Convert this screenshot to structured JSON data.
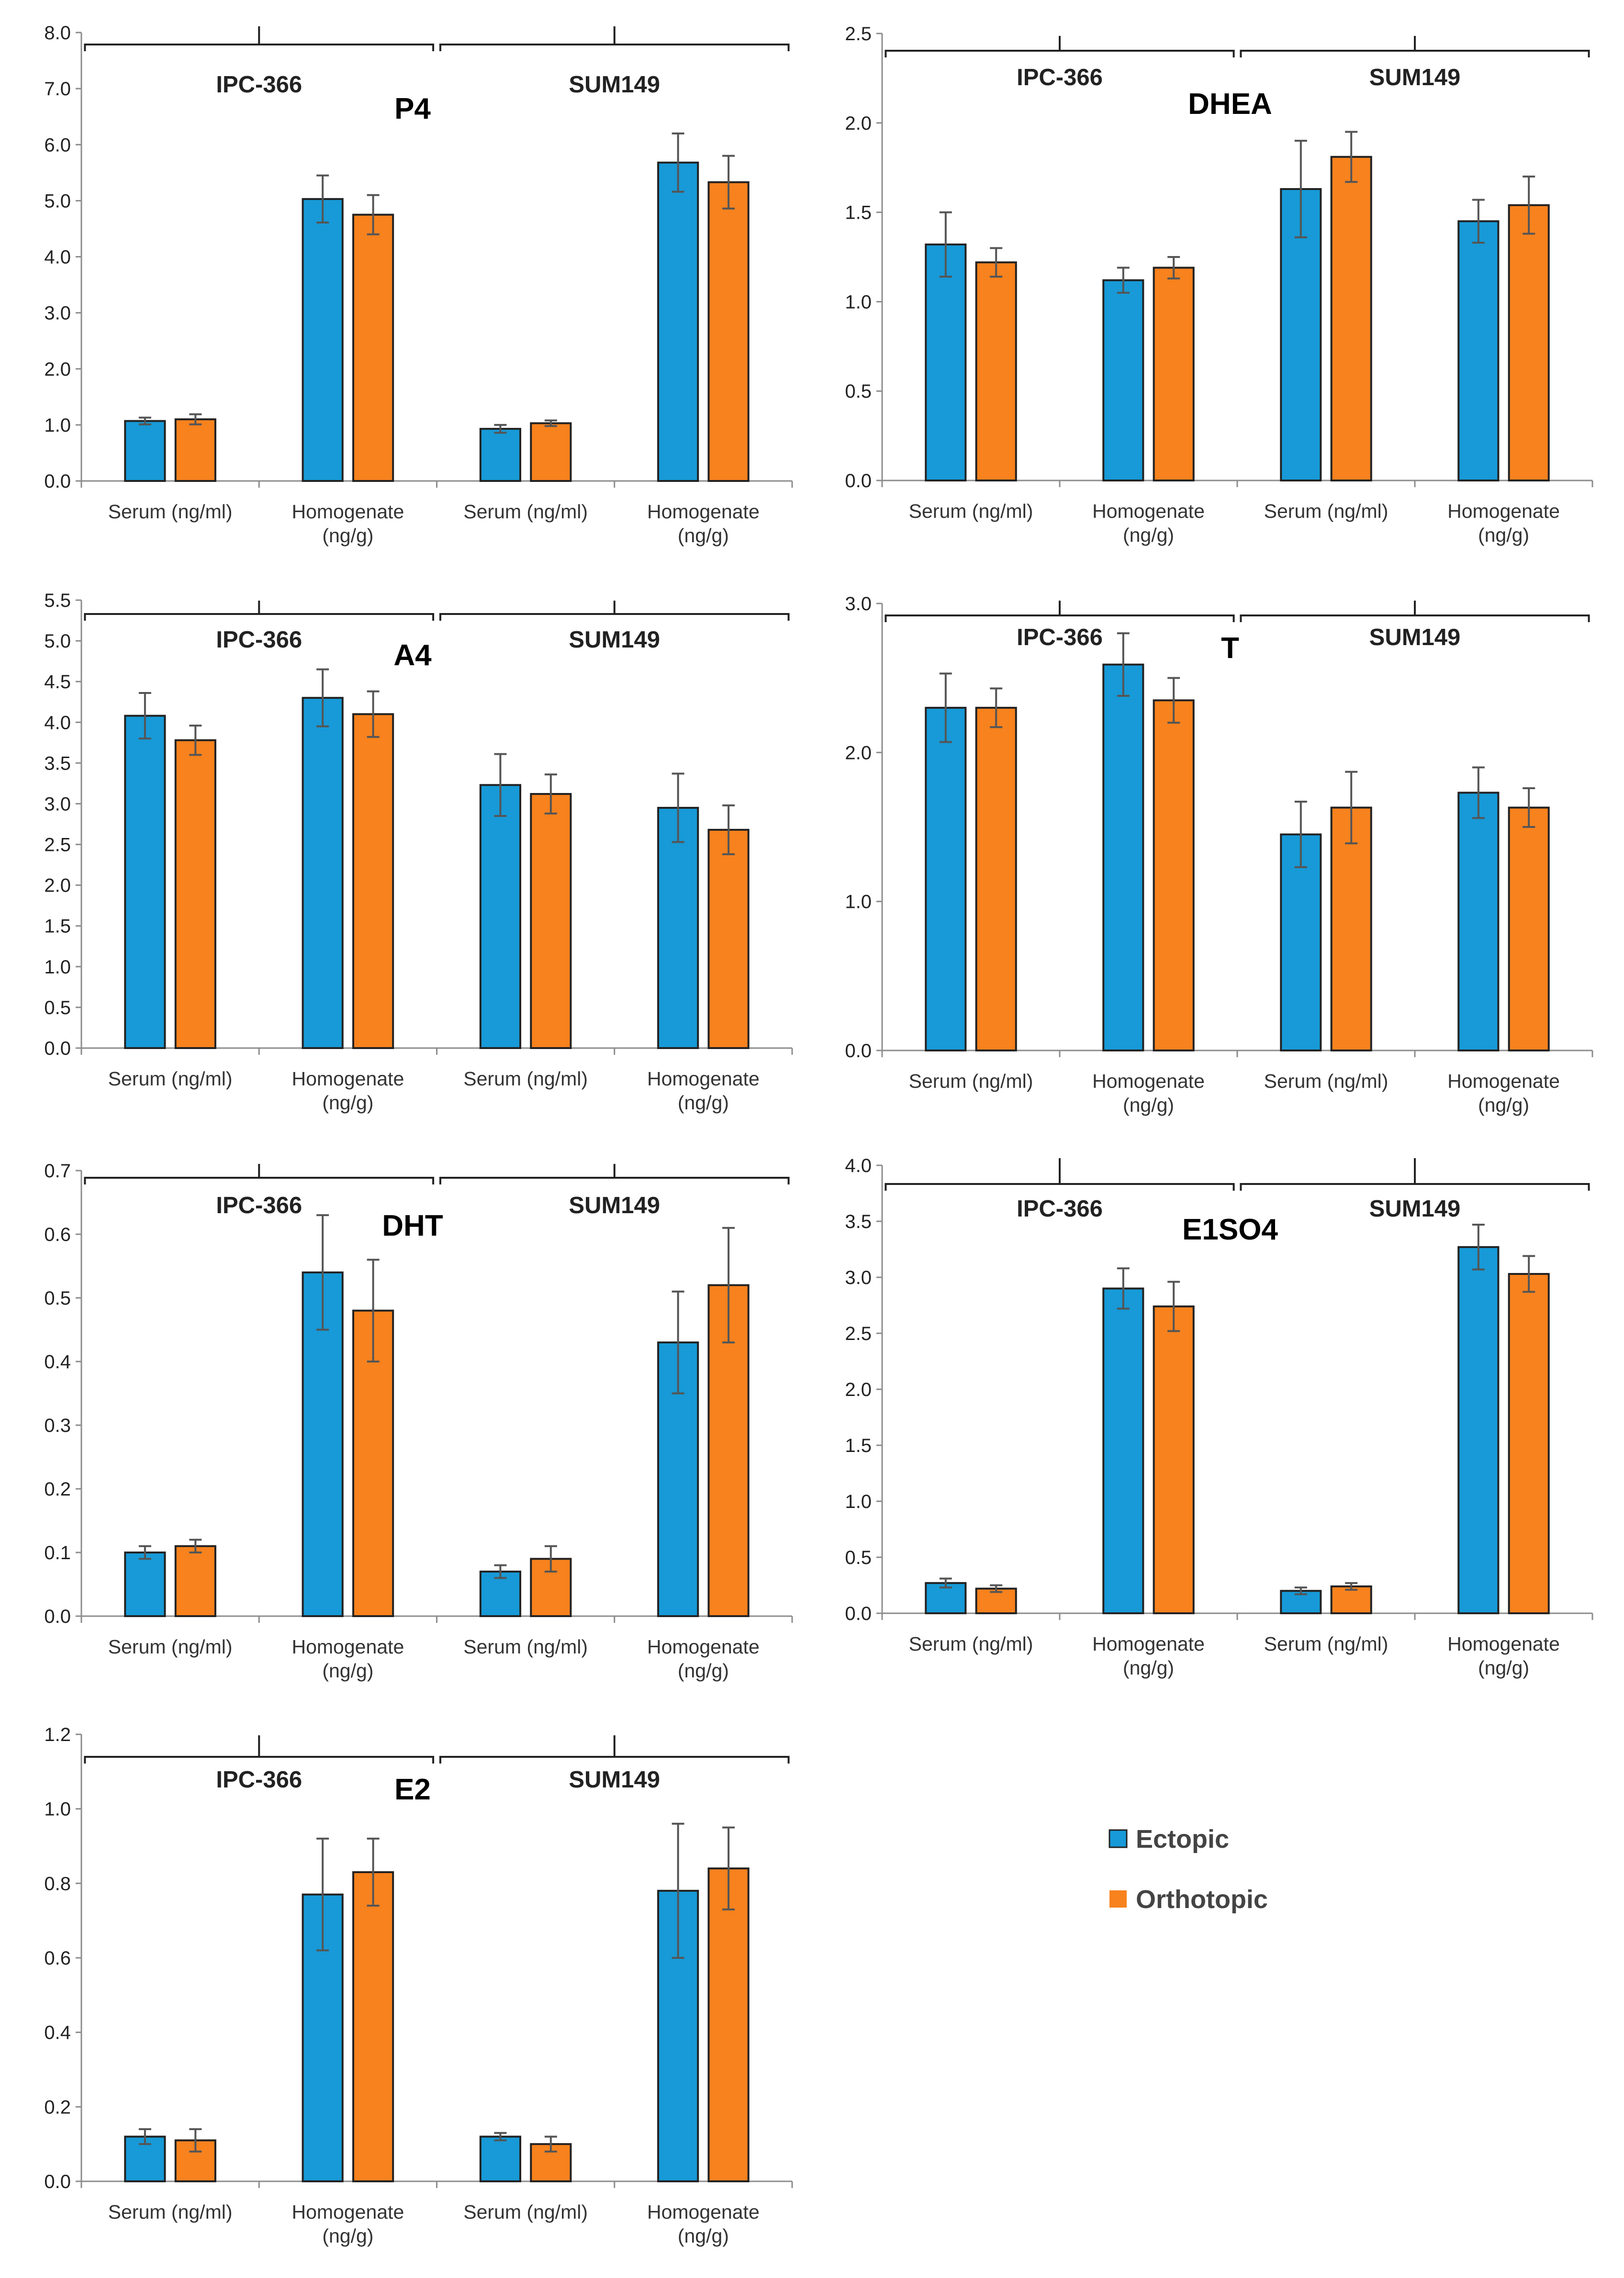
{
  "figure": {
    "colors": {
      "ectopic": "#179ad7",
      "orthotopic": "#f7821e",
      "axis": "#8c8c8c",
      "error": "#555555"
    },
    "legend": {
      "items": [
        {
          "label": "Ectopic",
          "color": "#179ad7"
        },
        {
          "label": "Orthotopic",
          "color": "#f7821e"
        }
      ]
    }
  },
  "chart_data": [
    {
      "type": "bar",
      "title": "P4",
      "categories": [
        "Serum (ng/ml)",
        "Homogenate\n(ng/g)",
        "Serum (ng/ml)",
        "Homogenate\n(ng/g)"
      ],
      "groups": [
        {
          "label": "IPC-366",
          "categories": [
            0,
            1
          ]
        },
        {
          "label": "SUM149",
          "categories": [
            2,
            3
          ]
        }
      ],
      "series": [
        {
          "name": "Ectopic",
          "values": [
            1.07,
            5.03,
            0.93,
            5.68
          ],
          "errors": [
            0.06,
            0.42,
            0.07,
            0.52
          ]
        },
        {
          "name": "Orthotopic",
          "values": [
            1.1,
            4.75,
            1.03,
            5.33
          ],
          "errors": [
            0.09,
            0.35,
            0.05,
            0.47
          ]
        }
      ],
      "ylim": [
        0,
        8
      ],
      "yticks": [
        0,
        1,
        2,
        3,
        4,
        5,
        6,
        7,
        8
      ],
      "ytick_labels": [
        "0.0",
        "1.0",
        "2.0",
        "3.0",
        "4.0",
        "5.0",
        "6.0",
        "7.0",
        "8.0"
      ]
    },
    {
      "type": "bar",
      "title": "DHEA",
      "categories": [
        "Serum (ng/ml)",
        "Homogenate\n(ng/g)",
        "Serum (ng/ml)",
        "Homogenate\n(ng/g)"
      ],
      "groups": [
        {
          "label": "IPC-366",
          "categories": [
            0,
            1
          ]
        },
        {
          "label": "SUM149",
          "categories": [
            2,
            3
          ]
        }
      ],
      "series": [
        {
          "name": "Ectopic",
          "values": [
            1.32,
            1.12,
            1.63,
            1.45
          ],
          "errors": [
            0.18,
            0.07,
            0.27,
            0.12
          ]
        },
        {
          "name": "Orthotopic",
          "values": [
            1.22,
            1.19,
            1.81,
            1.54
          ],
          "errors": [
            0.08,
            0.06,
            0.14,
            0.16
          ]
        }
      ],
      "ylim": [
        0,
        2.5
      ],
      "yticks": [
        0,
        0.5,
        1,
        1.5,
        2,
        2.5
      ],
      "ytick_labels": [
        "0.0",
        "0.5",
        "1.0",
        "1.5",
        "2.0",
        "2.5"
      ]
    },
    {
      "type": "bar",
      "title": "A4",
      "categories": [
        "Serum (ng/ml)",
        "Homogenate\n(ng/g)",
        "Serum (ng/ml)",
        "Homogenate\n(ng/g)"
      ],
      "groups": [
        {
          "label": "IPC-366",
          "categories": [
            0,
            1
          ]
        },
        {
          "label": "SUM149",
          "categories": [
            2,
            3
          ]
        }
      ],
      "series": [
        {
          "name": "Ectopic",
          "values": [
            4.08,
            4.3,
            3.23,
            2.95
          ],
          "errors": [
            0.28,
            0.35,
            0.38,
            0.42
          ]
        },
        {
          "name": "Orthotopic",
          "values": [
            3.78,
            4.1,
            3.12,
            2.68
          ],
          "errors": [
            0.18,
            0.28,
            0.24,
            0.3
          ]
        }
      ],
      "ylim": [
        0,
        5.5
      ],
      "yticks": [
        0,
        0.5,
        1,
        1.5,
        2,
        2.5,
        3,
        3.5,
        4,
        4.5,
        5,
        5.5
      ],
      "ytick_labels": [
        "0.0",
        "0.5",
        "1.0",
        "1.5",
        "2.0",
        "2.5",
        "3.0",
        "3.5",
        "4.0",
        "4.5",
        "5.0",
        "5.5"
      ]
    },
    {
      "type": "bar",
      "title": "T",
      "categories": [
        "Serum (ng/ml)",
        "Homogenate\n(ng/g)",
        "Serum (ng/ml)",
        "Homogenate\n(ng/g)"
      ],
      "groups": [
        {
          "label": "IPC-366",
          "categories": [
            0,
            1
          ]
        },
        {
          "label": "SUM149",
          "categories": [
            2,
            3
          ]
        }
      ],
      "series": [
        {
          "name": "Ectopic",
          "values": [
            2.3,
            2.59,
            1.45,
            1.73
          ],
          "errors": [
            0.23,
            0.21,
            0.22,
            0.17
          ]
        },
        {
          "name": "Orthotopic",
          "values": [
            2.3,
            2.35,
            1.63,
            1.63
          ],
          "errors": [
            0.13,
            0.15,
            0.24,
            0.13
          ]
        }
      ],
      "ylim": [
        0,
        3
      ],
      "yticks": [
        0,
        1,
        2,
        3
      ],
      "ytick_labels": [
        "0.0",
        "1.0",
        "2.0",
        "3.0"
      ]
    },
    {
      "type": "bar",
      "title": "DHT",
      "categories": [
        "Serum (ng/ml)",
        "Homogenate\n(ng/g)",
        "Serum (ng/ml)",
        "Homogenate\n(ng/g)"
      ],
      "groups": [
        {
          "label": "IPC-366",
          "categories": [
            0,
            1
          ]
        },
        {
          "label": "SUM149",
          "categories": [
            2,
            3
          ]
        }
      ],
      "series": [
        {
          "name": "Ectopic",
          "values": [
            0.1,
            0.54,
            0.07,
            0.43
          ],
          "errors": [
            0.01,
            0.09,
            0.01,
            0.08
          ]
        },
        {
          "name": "Orthotopic",
          "values": [
            0.11,
            0.48,
            0.09,
            0.52
          ],
          "errors": [
            0.01,
            0.08,
            0.02,
            0.09
          ]
        }
      ],
      "ylim": [
        0,
        0.7
      ],
      "yticks": [
        0,
        0.1,
        0.2,
        0.3,
        0.4,
        0.5,
        0.6,
        0.7
      ],
      "ytick_labels": [
        "0.0",
        "0.1",
        "0.2",
        "0.3",
        "0.4",
        "0.5",
        "0.6",
        "0.7"
      ]
    },
    {
      "type": "bar",
      "title": "E1SO4",
      "categories": [
        "Serum (ng/ml)",
        "Homogenate\n(ng/g)",
        "Serum (ng/ml)",
        "Homogenate\n(ng/g)"
      ],
      "groups": [
        {
          "label": "IPC-366",
          "categories": [
            0,
            1
          ]
        },
        {
          "label": "SUM149",
          "categories": [
            2,
            3
          ]
        }
      ],
      "series": [
        {
          "name": "Ectopic",
          "values": [
            0.27,
            2.9,
            0.2,
            3.27
          ],
          "errors": [
            0.04,
            0.18,
            0.03,
            0.2
          ]
        },
        {
          "name": "Orthotopic",
          "values": [
            0.22,
            2.74,
            0.24,
            3.03
          ],
          "errors": [
            0.03,
            0.22,
            0.03,
            0.16
          ]
        }
      ],
      "ylim": [
        0,
        4
      ],
      "yticks": [
        0,
        0.5,
        1,
        1.5,
        2,
        2.5,
        3,
        3.5,
        4
      ],
      "ytick_labels": [
        "0.0",
        "0.5",
        "1.0",
        "1.5",
        "2.0",
        "2.5",
        "3.0",
        "3.5",
        "4.0"
      ]
    },
    {
      "type": "bar",
      "title": "E2",
      "categories": [
        "Serum (ng/ml)",
        "Homogenate\n(ng/g)",
        "Serum (ng/ml)",
        "Homogenate\n(ng/g)"
      ],
      "groups": [
        {
          "label": "IPC-366",
          "categories": [
            0,
            1
          ]
        },
        {
          "label": "SUM149",
          "categories": [
            2,
            3
          ]
        }
      ],
      "series": [
        {
          "name": "Ectopic",
          "values": [
            0.12,
            0.77,
            0.12,
            0.78
          ],
          "errors": [
            0.02,
            0.15,
            0.01,
            0.18
          ]
        },
        {
          "name": "Orthotopic",
          "values": [
            0.11,
            0.83,
            0.1,
            0.84
          ],
          "errors": [
            0.03,
            0.09,
            0.02,
            0.11
          ]
        }
      ],
      "ylim": [
        0,
        1.2
      ],
      "yticks": [
        0,
        0.2,
        0.4,
        0.6,
        0.8,
        1.0,
        1.2
      ],
      "ytick_labels": [
        "0.0",
        "0.2",
        "0.4",
        "0.6",
        "0.8",
        "1.0",
        "1.2"
      ]
    }
  ]
}
